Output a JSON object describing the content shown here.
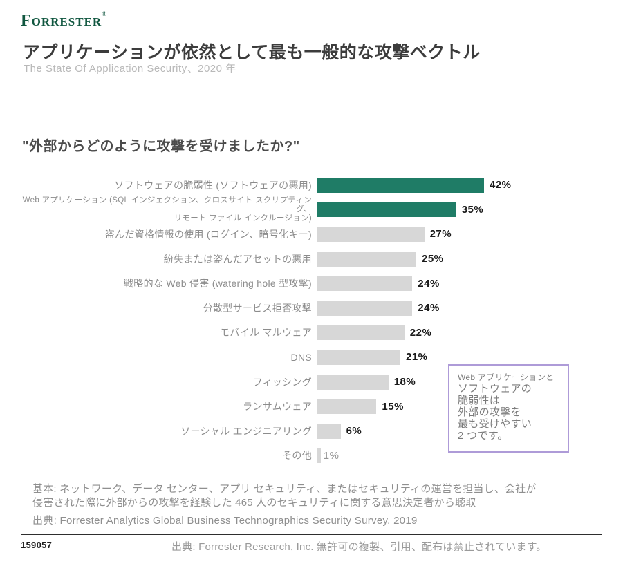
{
  "brand": {
    "logo_text": "Forrester",
    "registered_mark": "®",
    "logo_color": "#115740"
  },
  "header": {
    "title": "アプリケーションが依然として最も一般的な攻撃ベクトル",
    "subtitle": "The State Of Application Security、2020 年"
  },
  "question": "\"外部からどのように攻撃を受けましたか?\"",
  "chart_data": {
    "type": "bar",
    "orientation": "horizontal",
    "title": "\"外部からどのように攻撃を受けましたか?\"",
    "value_suffix": "%",
    "xlim": [
      0,
      45
    ],
    "grid": false,
    "legend": "none",
    "categories": [
      "ソフトウェアの脆弱性 (ソフトウェアの悪用)",
      "Web アプリケーション (SQL インジェクション、クロスサイト スクリプティング、リモート ファイル インクルージョン)",
      "盗んだ資格情報の使用 (ログイン、暗号化キー)",
      "紛失または盗んだアセットの悪用",
      "戦略的な Web 侵害 (watering hole 型攻撃)",
      "分散型サービス拒否攻撃",
      "モバイル マルウェア",
      "DNS",
      "フィッシング",
      "ランサムウェア",
      "ソーシャル エンジニアリング",
      "その他"
    ],
    "values": [
      42,
      35,
      27,
      25,
      24,
      24,
      22,
      21,
      18,
      15,
      6,
      1
    ],
    "highlighted_indices": [
      0,
      1
    ],
    "muted_value_indices": [
      11
    ],
    "label_wrap": {
      "1": [
        "Web アプリケーション (SQL インジェクション、クロスサイト スクリプティング、",
        "リモート ファイル インクルージョン)"
      ]
    },
    "colors": {
      "highlight": "#1F7C66",
      "default": "#D7D7D7",
      "value_label": "#1A1A1A",
      "category_label": "#8C8C8C"
    }
  },
  "annotation": {
    "border_color": "#AE9BD8",
    "lines": [
      "Web アプリケーションと",
      "ソフトウェアの",
      "脆弱性は",
      "外部の攻撃を",
      "最も受けやすい",
      "2 つです。"
    ]
  },
  "footnotes": {
    "base_line1": "基本: ネットワーク、データ センター、アプリ セキュリティ、またはセキュリティの運営を担当し、会社が",
    "base_line2": "侵害された際に外部からの攻撃を経験した 465 人のセキュリティに関する意思決定者から聴取",
    "source": "出典: Forrester Analytics Global Business Technographics Security Survey, 2019"
  },
  "footer": {
    "document_id": "159057",
    "copyright": "出典: Forrester Research, Inc. 無許可の複製、引用、配布は禁止されています。"
  }
}
